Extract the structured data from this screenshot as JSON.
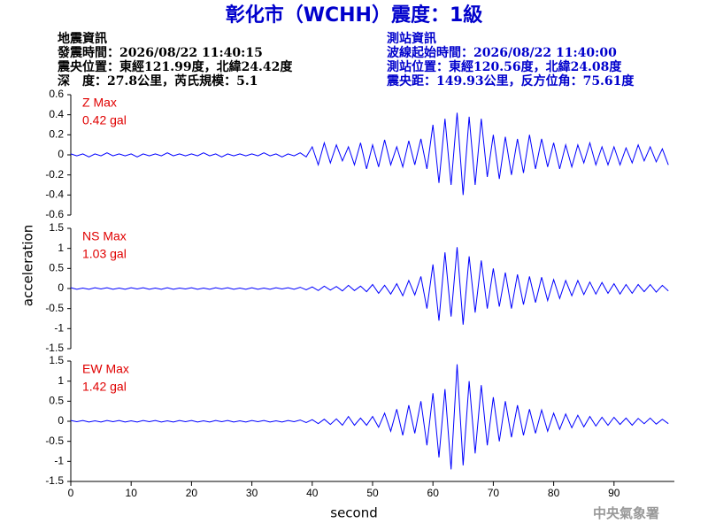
{
  "header": {
    "title": "彰化市（WCHH）震度：1級",
    "event": [
      "地震資訊",
      "發震時間：2026/08/22 11:40:15",
      "震央位置：東經121.99度，北緯24.42度",
      "深　度：27.8公里，芮氏規模：5.1"
    ],
    "station": [
      "測站資訊",
      "波線起始時間：2026/08/22 11:40:00",
      "測站位置：東經120.56度，北緯24.08度",
      "震央距：149.93公里，反方位角：75.61度"
    ],
    "footer": "中央氣象署"
  },
  "chart_data": [
    {
      "type": "line",
      "annotation": "Z Max",
      "annotation2": "0.42 gal",
      "color": "#0000ff",
      "ylim": [
        -0.6,
        0.6
      ],
      "yticks": [
        -0.6,
        -0.4,
        -0.2,
        0,
        0.2,
        0.4,
        0.6
      ],
      "xlim": [
        0,
        100
      ],
      "x": [
        0,
        1,
        2,
        3,
        4,
        5,
        6,
        7,
        8,
        9,
        10,
        11,
        12,
        13,
        14,
        15,
        16,
        17,
        18,
        19,
        20,
        21,
        22,
        23,
        24,
        25,
        26,
        27,
        28,
        29,
        30,
        31,
        32,
        33,
        34,
        35,
        36,
        37,
        38,
        39,
        40,
        41,
        42,
        43,
        44,
        45,
        46,
        47,
        48,
        49,
        50,
        51,
        52,
        53,
        54,
        55,
        56,
        57,
        58,
        59,
        60,
        61,
        62,
        63,
        64,
        65,
        66,
        67,
        68,
        69,
        70,
        71,
        72,
        73,
        74,
        75,
        76,
        77,
        78,
        79,
        80,
        81,
        82,
        83,
        84,
        85,
        86,
        87,
        88,
        89,
        90,
        91,
        92,
        93,
        94,
        95,
        96,
        97,
        98,
        99
      ],
      "series": [
        {
          "name": "Z",
          "color": "#0000ff",
          "values": [
            0.01,
            -0.01,
            0.01,
            -0.02,
            0.01,
            -0.01,
            0.02,
            -0.01,
            0.01,
            -0.01,
            0.01,
            -0.02,
            0.01,
            -0.01,
            0.01,
            -0.01,
            0.02,
            -0.01,
            0.01,
            -0.01,
            0.01,
            -0.01,
            0.02,
            -0.01,
            0.01,
            -0.02,
            0.01,
            -0.01,
            0.01,
            -0.01,
            0.01,
            -0.01,
            0.02,
            -0.01,
            0.01,
            -0.02,
            0.01,
            -0.01,
            0.02,
            -0.02,
            0.08,
            -0.1,
            0.12,
            -0.08,
            0.1,
            -0.06,
            0.08,
            -0.1,
            0.12,
            -0.14,
            0.1,
            -0.12,
            0.15,
            -0.1,
            0.08,
            -0.12,
            0.14,
            -0.1,
            0.16,
            -0.14,
            0.3,
            -0.28,
            0.36,
            -0.3,
            0.42,
            -0.4,
            0.38,
            -0.3,
            0.36,
            -0.22,
            0.2,
            -0.24,
            0.18,
            -0.2,
            0.16,
            -0.18,
            0.2,
            -0.14,
            0.16,
            -0.12,
            0.12,
            -0.14,
            0.1,
            -0.12,
            0.1,
            -0.08,
            0.12,
            -0.1,
            0.08,
            -0.1,
            0.08,
            -0.1,
            0.07,
            -0.08,
            0.1,
            -0.06,
            0.08,
            -0.07,
            0.06,
            -0.1
          ]
        }
      ]
    },
    {
      "type": "line",
      "annotation": "NS Max",
      "annotation2": "1.03 gal",
      "ylabel": "acceleration",
      "color": "#0000ff",
      "ylim": [
        -1.5,
        1.5
      ],
      "yticks": [
        -1.5,
        -1,
        -0.5,
        0,
        0.5,
        1,
        1.5
      ],
      "xlim": [
        0,
        100
      ],
      "x": [
        0,
        1,
        2,
        3,
        4,
        5,
        6,
        7,
        8,
        9,
        10,
        11,
        12,
        13,
        14,
        15,
        16,
        17,
        18,
        19,
        20,
        21,
        22,
        23,
        24,
        25,
        26,
        27,
        28,
        29,
        30,
        31,
        32,
        33,
        34,
        35,
        36,
        37,
        38,
        39,
        40,
        41,
        42,
        43,
        44,
        45,
        46,
        47,
        48,
        49,
        50,
        51,
        52,
        53,
        54,
        55,
        56,
        57,
        58,
        59,
        60,
        61,
        62,
        63,
        64,
        65,
        66,
        67,
        68,
        69,
        70,
        71,
        72,
        73,
        74,
        75,
        76,
        77,
        78,
        79,
        80,
        81,
        82,
        83,
        84,
        85,
        86,
        87,
        88,
        89,
        90,
        91,
        92,
        93,
        94,
        95,
        96,
        97,
        98,
        99
      ],
      "series": [
        {
          "name": "NS",
          "color": "#0000ff",
          "values": [
            0.02,
            -0.02,
            0.01,
            -0.02,
            0.02,
            -0.01,
            0.02,
            -0.02,
            0.01,
            -0.02,
            0.02,
            -0.01,
            0.02,
            -0.02,
            0.01,
            -0.02,
            0.02,
            -0.02,
            0.01,
            -0.01,
            0.02,
            -0.02,
            0.01,
            -0.02,
            0.02,
            -0.01,
            0.02,
            -0.02,
            0.01,
            -0.02,
            0.02,
            -0.02,
            0.01,
            -0.02,
            0.02,
            -0.01,
            0.02,
            -0.02,
            0.03,
            -0.03,
            0.04,
            -0.05,
            0.06,
            -0.04,
            0.05,
            -0.06,
            0.08,
            -0.05,
            0.06,
            -0.08,
            0.1,
            -0.12,
            0.08,
            -0.14,
            0.12,
            -0.18,
            0.2,
            -0.16,
            0.3,
            -0.5,
            0.6,
            -0.8,
            0.9,
            -0.7,
            1.03,
            -0.9,
            0.8,
            -0.6,
            0.7,
            -0.5,
            0.5,
            -0.45,
            0.4,
            -0.5,
            0.35,
            -0.4,
            0.3,
            -0.35,
            0.28,
            -0.3,
            0.22,
            -0.25,
            0.2,
            -0.18,
            0.2,
            -0.15,
            0.16,
            -0.14,
            0.15,
            -0.12,
            0.12,
            -0.14,
            0.1,
            -0.12,
            0.1,
            -0.08,
            0.1,
            -0.09,
            0.08,
            -0.06
          ]
        }
      ]
    },
    {
      "type": "line",
      "annotation": "EW Max",
      "annotation2": "1.42 gal",
      "xlabel": "second",
      "color": "#0000ff",
      "ylim": [
        -1.5,
        1.5
      ],
      "yticks": [
        -1.5,
        -1,
        -0.5,
        0,
        0.5,
        1,
        1.5
      ],
      "xlim": [
        0,
        100
      ],
      "xticks": [
        0,
        10,
        20,
        30,
        40,
        50,
        60,
        70,
        80,
        90
      ],
      "x": [
        0,
        1,
        2,
        3,
        4,
        5,
        6,
        7,
        8,
        9,
        10,
        11,
        12,
        13,
        14,
        15,
        16,
        17,
        18,
        19,
        20,
        21,
        22,
        23,
        24,
        25,
        26,
        27,
        28,
        29,
        30,
        31,
        32,
        33,
        34,
        35,
        36,
        37,
        38,
        39,
        40,
        41,
        42,
        43,
        44,
        45,
        46,
        47,
        48,
        49,
        50,
        51,
        52,
        53,
        54,
        55,
        56,
        57,
        58,
        59,
        60,
        61,
        62,
        63,
        64,
        65,
        66,
        67,
        68,
        69,
        70,
        71,
        72,
        73,
        74,
        75,
        76,
        77,
        78,
        79,
        80,
        81,
        82,
        83,
        84,
        85,
        86,
        87,
        88,
        89,
        90,
        91,
        92,
        93,
        94,
        95,
        96,
        97,
        98,
        99
      ],
      "series": [
        {
          "name": "EW",
          "color": "#0000ff",
          "values": [
            0.02,
            -0.01,
            0.02,
            -0.02,
            0.01,
            -0.02,
            0.02,
            -0.01,
            0.02,
            -0.02,
            0.01,
            -0.02,
            0.02,
            -0.01,
            0.02,
            -0.02,
            0.01,
            -0.02,
            0.02,
            -0.01,
            0.02,
            -0.02,
            0.01,
            -0.02,
            0.02,
            -0.01,
            0.02,
            -0.02,
            0.01,
            -0.02,
            0.02,
            -0.01,
            0.02,
            -0.02,
            0.01,
            -0.02,
            0.02,
            -0.01,
            0.03,
            -0.03,
            0.04,
            -0.06,
            0.05,
            -0.08,
            0.06,
            -0.1,
            0.12,
            -0.1,
            0.08,
            -0.1,
            0.12,
            -0.15,
            0.2,
            -0.25,
            0.3,
            -0.35,
            0.4,
            -0.3,
            0.5,
            -0.6,
            0.7,
            -0.9,
            0.8,
            -1.2,
            1.42,
            -1.1,
            1.0,
            -0.8,
            0.9,
            -0.6,
            0.6,
            -0.5,
            0.5,
            -0.4,
            0.4,
            -0.35,
            0.3,
            -0.3,
            0.28,
            -0.25,
            0.2,
            -0.2,
            0.18,
            -0.16,
            0.15,
            -0.14,
            0.12,
            -0.12,
            0.1,
            -0.1,
            0.1,
            -0.08,
            0.08,
            -0.1,
            0.07,
            -0.06,
            0.08,
            -0.07,
            0.05,
            -0.06
          ]
        }
      ]
    }
  ]
}
